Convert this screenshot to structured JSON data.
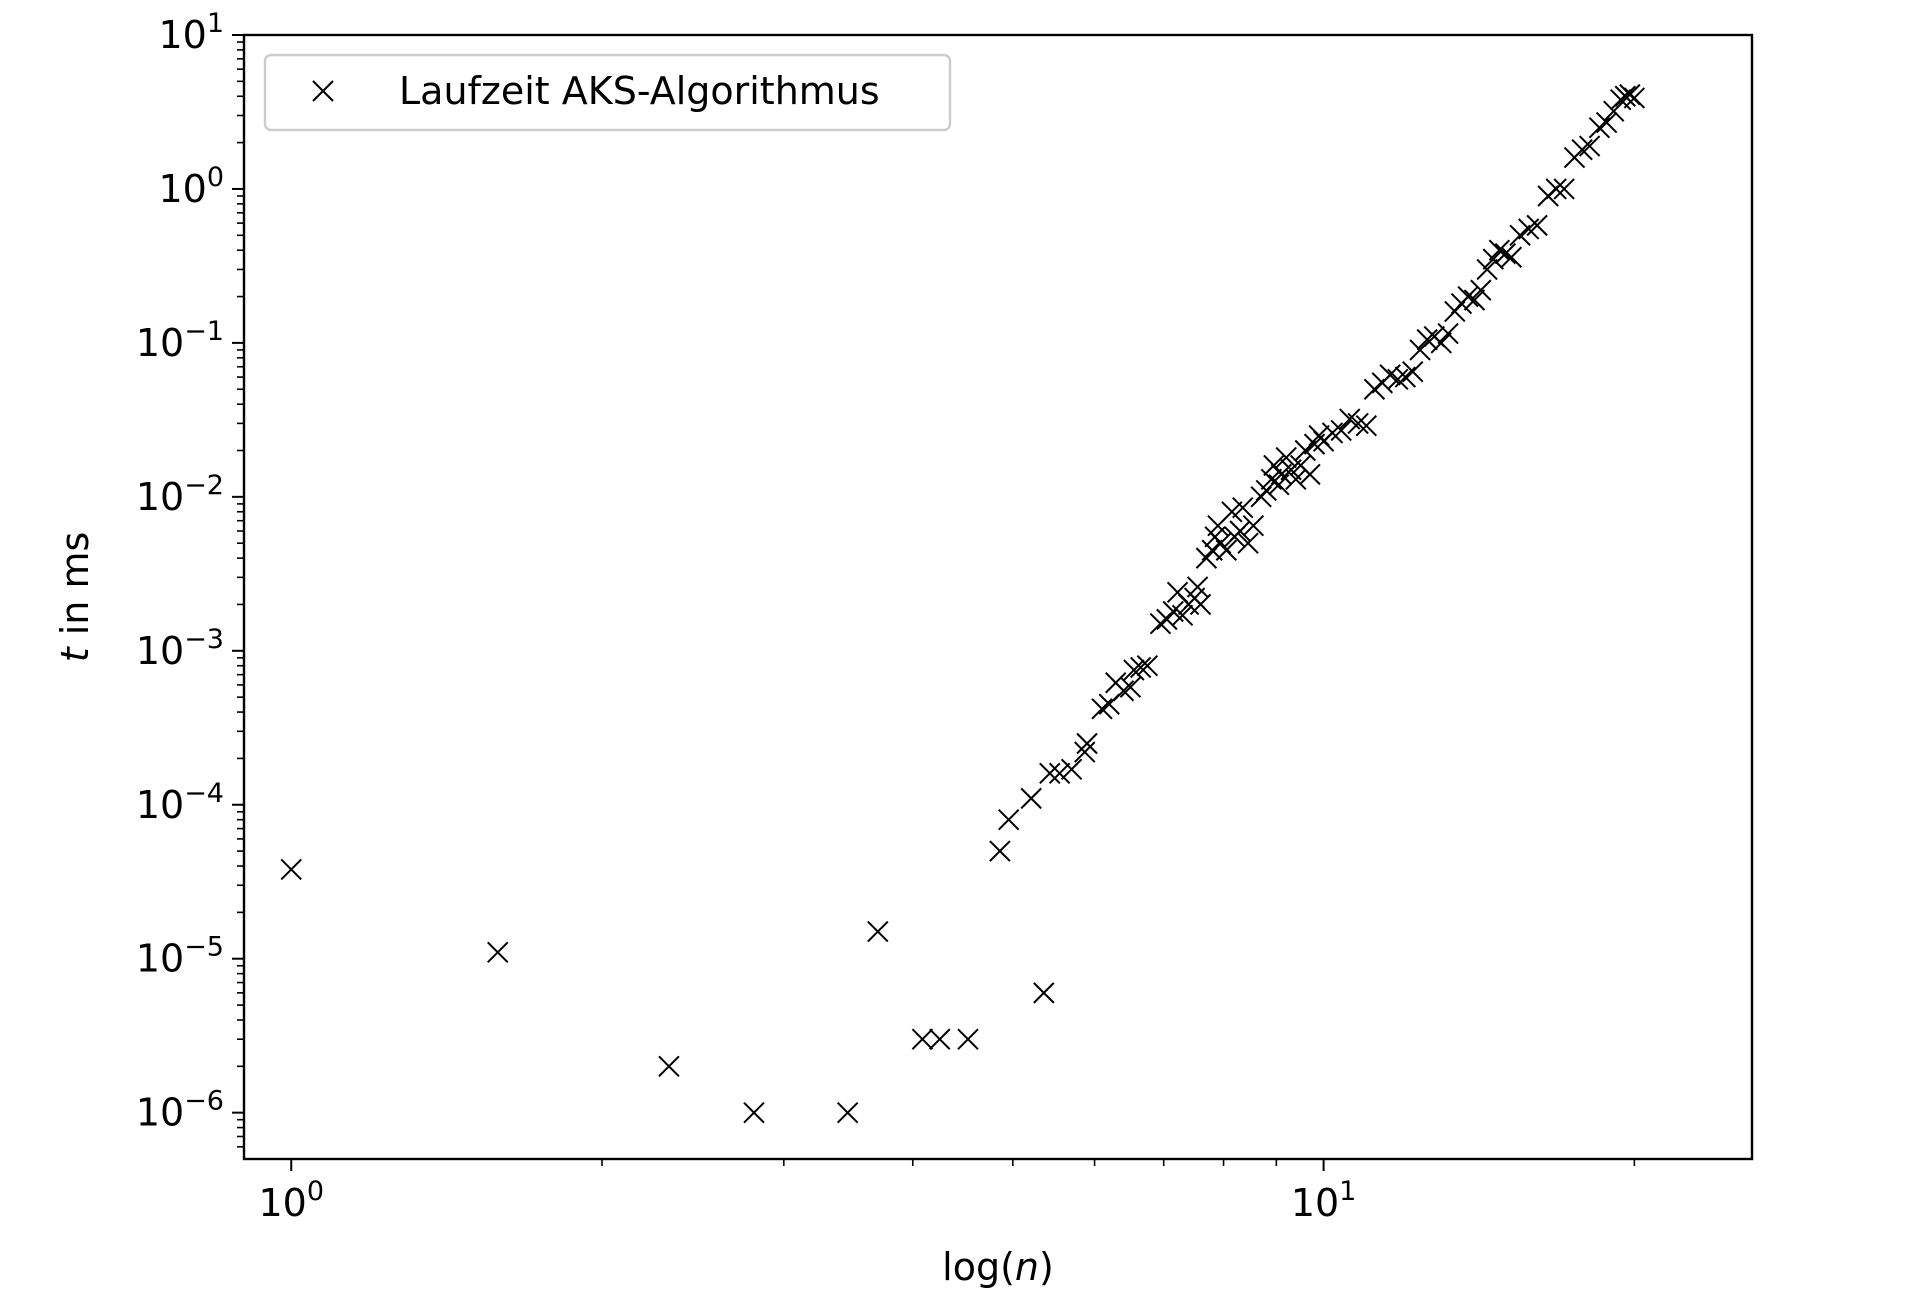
{
  "chart_data": {
    "type": "scatter",
    "xlabel_main": "log(",
    "xlabel_var": "n",
    "xlabel_close": ")",
    "ylabel_var": "t",
    "ylabel_rest": " in ms",
    "x_scale": "log",
    "y_scale": "log",
    "xlim": [
      0.9,
      26
    ],
    "ylim": [
      5e-07,
      10
    ],
    "x_major_ticks": [
      {
        "value": 1,
        "exp": "0"
      },
      {
        "value": 10,
        "exp": "1"
      }
    ],
    "y_major_ticks": [
      {
        "value": 10,
        "exp": "1"
      },
      {
        "value": 1,
        "exp": "0"
      },
      {
        "value": 0.1,
        "exp": "−1"
      },
      {
        "value": 0.01,
        "exp": "−2"
      },
      {
        "value": 0.001,
        "exp": "−3"
      },
      {
        "value": 0.0001,
        "exp": "−4"
      },
      {
        "value": 1e-05,
        "exp": "−5"
      },
      {
        "value": 1e-06,
        "exp": "−6"
      }
    ],
    "tick_base": "10",
    "grid": false,
    "legend": {
      "position": "top-left",
      "label": "Laufzeit AKS-Algorithmus",
      "marker": "x"
    },
    "marker_color": "#000000",
    "series": [
      {
        "name": "Laufzeit AKS-Algorithmus",
        "marker": "x",
        "points": [
          [
            1.0,
            3.8e-05
          ],
          [
            1.585,
            1.1e-05
          ],
          [
            2.322,
            2e-06
          ],
          [
            2.807,
            1e-06
          ],
          [
            3.459,
            1e-06
          ],
          [
            3.7,
            1.5e-05
          ],
          [
            4.087,
            3e-06
          ],
          [
            4.248,
            3e-06
          ],
          [
            4.524,
            3e-06
          ],
          [
            4.858,
            5e-05
          ],
          [
            4.954,
            8e-05
          ],
          [
            5.209,
            0.00011
          ],
          [
            5.358,
            6e-06
          ],
          [
            5.43,
            0.00016
          ],
          [
            5.55,
            0.00016
          ],
          [
            5.7,
            0.00017
          ],
          [
            5.87,
            0.00022
          ],
          [
            5.9,
            0.00025
          ],
          [
            6.1,
            0.00042
          ],
          [
            6.2,
            0.00045
          ],
          [
            6.29,
            0.00062
          ],
          [
            6.4,
            0.00055
          ],
          [
            6.5,
            0.00058
          ],
          [
            6.55,
            0.00075
          ],
          [
            6.65,
            0.00078
          ],
          [
            6.75,
            0.0008
          ],
          [
            6.95,
            0.0015
          ],
          [
            7.05,
            0.0016
          ],
          [
            7.15,
            0.0018
          ],
          [
            7.22,
            0.0024
          ],
          [
            7.3,
            0.0017
          ],
          [
            7.4,
            0.002
          ],
          [
            7.5,
            0.0022
          ],
          [
            7.55,
            0.0026
          ],
          [
            7.6,
            0.002
          ],
          [
            7.7,
            0.004
          ],
          [
            7.8,
            0.0045
          ],
          [
            7.85,
            0.0055
          ],
          [
            7.9,
            0.0065
          ],
          [
            7.95,
            0.005
          ],
          [
            8.05,
            0.0045
          ],
          [
            8.15,
            0.008
          ],
          [
            8.2,
            0.0055
          ],
          [
            8.3,
            0.006
          ],
          [
            8.35,
            0.0085
          ],
          [
            8.45,
            0.005
          ],
          [
            8.55,
            0.0065
          ],
          [
            8.7,
            0.01
          ],
          [
            8.8,
            0.011
          ],
          [
            8.9,
            0.013
          ],
          [
            8.95,
            0.016
          ],
          [
            9.05,
            0.012
          ],
          [
            9.1,
            0.014
          ],
          [
            9.2,
            0.018
          ],
          [
            9.3,
            0.015
          ],
          [
            9.4,
            0.013
          ],
          [
            9.5,
            0.016
          ],
          [
            9.6,
            0.02
          ],
          [
            9.7,
            0.014
          ],
          [
            9.8,
            0.022
          ],
          [
            9.9,
            0.025
          ],
          [
            10.0,
            0.023
          ],
          [
            10.2,
            0.026
          ],
          [
            10.4,
            0.027
          ],
          [
            10.6,
            0.032
          ],
          [
            10.8,
            0.03
          ],
          [
            11.0,
            0.029
          ],
          [
            11.2,
            0.05
          ],
          [
            11.4,
            0.055
          ],
          [
            11.6,
            0.062
          ],
          [
            11.8,
            0.058
          ],
          [
            12.0,
            0.06
          ],
          [
            12.2,
            0.065
          ],
          [
            12.4,
            0.09
          ],
          [
            12.6,
            0.105
          ],
          [
            12.8,
            0.11
          ],
          [
            13.0,
            0.1
          ],
          [
            13.2,
            0.115
          ],
          [
            13.4,
            0.16
          ],
          [
            13.6,
            0.18
          ],
          [
            13.8,
            0.2
          ],
          [
            14.0,
            0.19
          ],
          [
            14.2,
            0.22
          ],
          [
            14.4,
            0.3
          ],
          [
            14.6,
            0.35
          ],
          [
            14.8,
            0.4
          ],
          [
            15.0,
            0.38
          ],
          [
            15.2,
            0.36
          ],
          [
            15.5,
            0.5
          ],
          [
            15.8,
            0.55
          ],
          [
            16.1,
            0.58
          ],
          [
            16.5,
            0.9
          ],
          [
            16.8,
            1.0
          ],
          [
            17.1,
            1.0
          ],
          [
            17.5,
            1.6
          ],
          [
            17.8,
            1.8
          ],
          [
            18.1,
            1.9
          ],
          [
            18.5,
            2.5
          ],
          [
            18.8,
            2.7
          ],
          [
            19.1,
            3.2
          ],
          [
            19.4,
            3.8
          ],
          [
            19.6,
            4.0
          ],
          [
            19.8,
            4.1
          ],
          [
            20.0,
            3.9
          ]
        ]
      }
    ]
  }
}
